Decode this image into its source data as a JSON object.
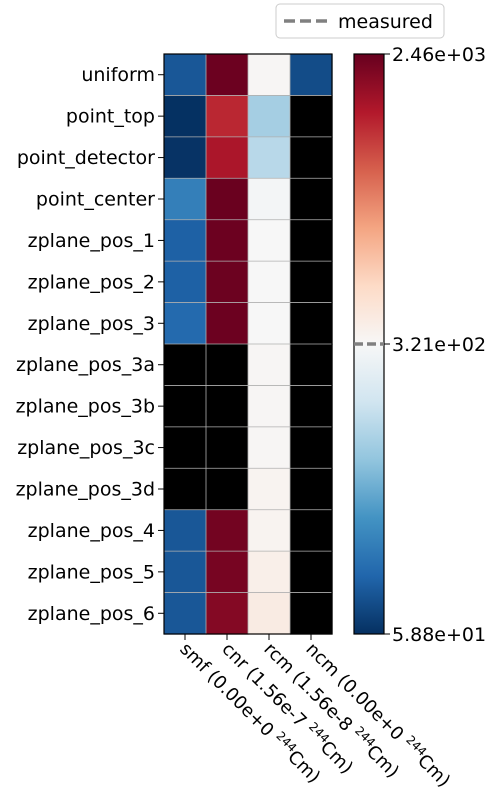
{
  "chart_data": {
    "type": "heatmap",
    "title": "",
    "rows": [
      "uniform",
      "point_top",
      "point_detector",
      "point_center",
      "zplane_pos_1",
      "zplane_pos_2",
      "zplane_pos_3",
      "zplane_pos_3a",
      "zplane_pos_3b",
      "zplane_pos_3c",
      "zplane_pos_3d",
      "zplane_pos_4",
      "zplane_pos_5",
      "zplane_pos_6"
    ],
    "columns": [
      {
        "main": "smf (0.00e+0 ",
        "sup": "244",
        "tail": "Cm)"
      },
      {
        "main": "cnr (1.56e-7 ",
        "sup": "244",
        "tail": "Cm)"
      },
      {
        "main": "rcm (1.56e-8 ",
        "sup": "244",
        "tail": "Cm)"
      },
      {
        "main": "ncm (0.00e+0 ",
        "sup": "244",
        "tail": "Cm)"
      }
    ],
    "values": [
      [
        75,
        2400,
        330,
        70
      ],
      [
        59,
        1500,
        180,
        null
      ],
      [
        60,
        1700,
        200,
        null
      ],
      [
        100,
        2420,
        310,
        null
      ],
      [
        80,
        2400,
        320,
        null
      ],
      [
        80,
        2390,
        320,
        null
      ],
      [
        85,
        2400,
        320,
        null
      ],
      [
        null,
        null,
        330,
        null
      ],
      [
        null,
        null,
        330,
        null
      ],
      [
        null,
        null,
        330,
        null
      ],
      [
        null,
        null,
        340,
        null
      ],
      [
        75,
        2300,
        340,
        null
      ],
      [
        75,
        2250,
        360,
        null
      ],
      [
        75,
        2100,
        380,
        null
      ]
    ],
    "missing_color": "#000000",
    "colormap": "RdBu_r",
    "scale": "log",
    "vmin": 58.8,
    "vmax": 2460,
    "center": 321,
    "colorbar_ticks": [
      "2.46e+03",
      "3.21e+02",
      "5.88e+01"
    ],
    "colorbar_marker": {
      "value": 321,
      "style": "dashed",
      "color": "#808080"
    },
    "legend": {
      "label": "measured",
      "position": "top-right"
    }
  }
}
